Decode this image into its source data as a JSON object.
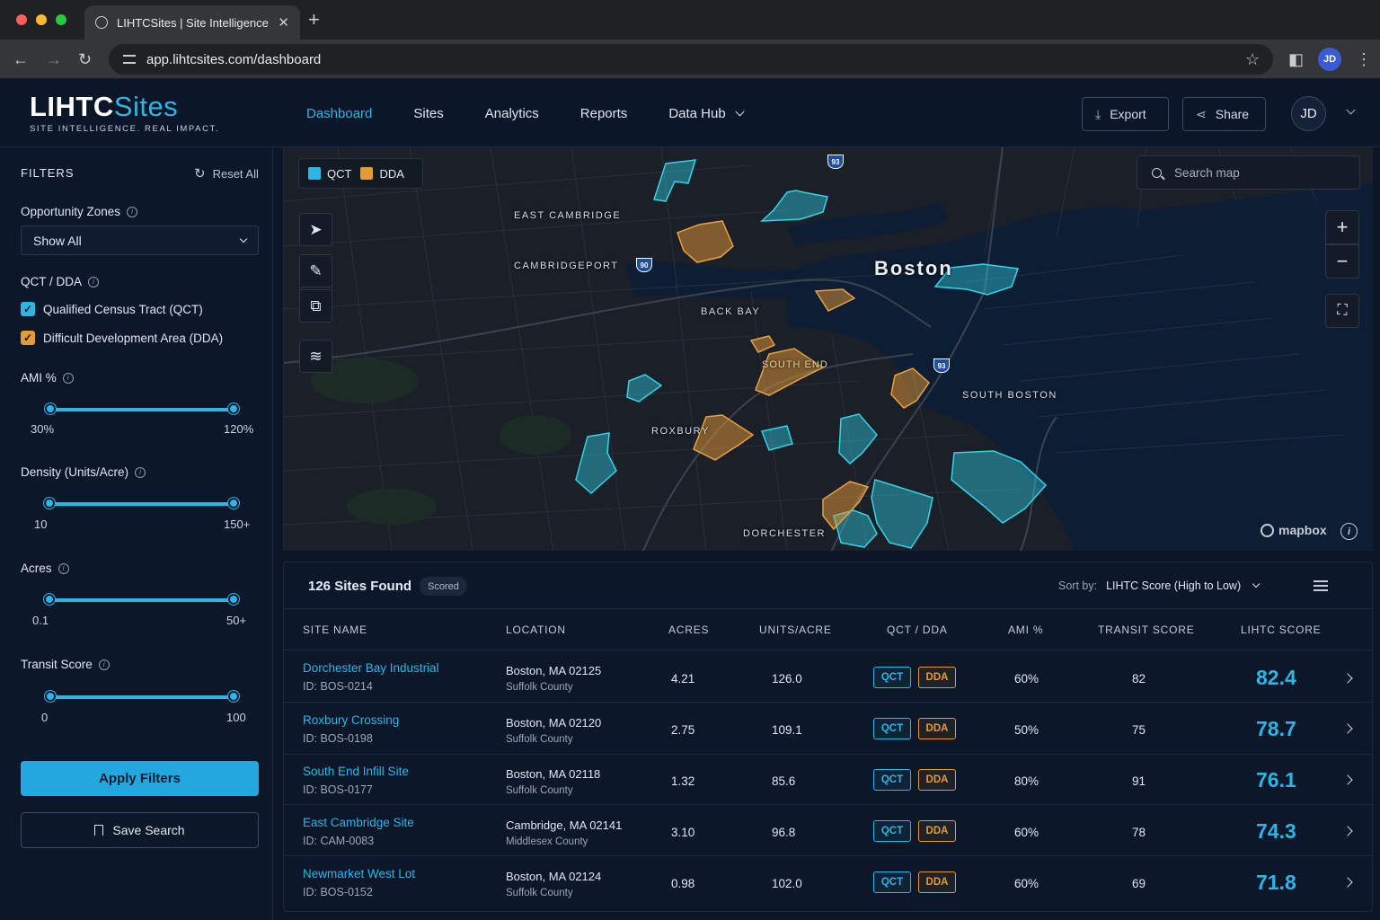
{
  "browser": {
    "tab_title": "LIHTCSites | Site Intelligence",
    "url": "app.lihtcsites.com/dashboard",
    "profile_initials": "JD"
  },
  "app": {
    "logo_bold": "LIHTC",
    "logo_light": "Sites",
    "tagline": "SITE INTELLIGENCE. REAL IMPACT.",
    "nav": [
      "Dashboard",
      "Sites",
      "Analytics",
      "Reports",
      "Data Hub"
    ],
    "active_nav": "Dashboard",
    "export_label": "Export",
    "share_label": "Share",
    "user_initials": "JD",
    "accent": "#2fb4e6",
    "dda_color": "#e59a34"
  },
  "filters": {
    "title": "FILTERS",
    "reset_label": "Reset All",
    "opportunity_zones": {
      "label": "Opportunity Zones",
      "value": "Show All"
    },
    "qct_dda": {
      "label": "QCT / DDA",
      "options": [
        {
          "label": "Qualified Census Tract (QCT)",
          "checked": true,
          "color": "#2fb4e6"
        },
        {
          "label": "Difficult Development Area (DDA)",
          "checked": true,
          "color": "#e59a34"
        }
      ]
    },
    "ami": {
      "label": "AMI %",
      "min": "30%",
      "max": "120%"
    },
    "density": {
      "label": "Density (Units/Acre)",
      "min": "10",
      "max": "150+"
    },
    "acres": {
      "label": "Acres",
      "min": "0.1",
      "max": "50+"
    },
    "transit": {
      "label": "Transit Score",
      "min": "0",
      "max": "100"
    },
    "apply_label": "Apply Filters",
    "save_label": "Save Search"
  },
  "map": {
    "legend": [
      "QCT",
      "DDA"
    ],
    "search_placeholder": "Search map",
    "labels": {
      "east_cambridge": "EAST CAMBRIDGE",
      "cambridgeport": "CAMBRIDGEPORT",
      "boston": "Boston",
      "back_bay": "BACK BAY",
      "south_boston": "SOUTH BOSTON",
      "roxbury": "ROXBURY",
      "dorchester": "DORCHESTER",
      "south_end": "SOUTH END"
    },
    "highways": [
      "93",
      "90",
      "93"
    ],
    "attribution": "mapbox"
  },
  "results": {
    "count_label": "126 Sites Found",
    "badge": "Scored",
    "sort_label": "Sort by:",
    "sort_value": "LIHTC Score (High to Low)",
    "columns": [
      "SITE NAME",
      "LOCATION",
      "ACRES",
      "UNITS/ACRE",
      "QCT / DDA",
      "AMI %",
      "TRANSIT SCORE",
      "LIHTC SCORE"
    ],
    "rows": [
      {
        "name": "Dorchester Bay Industrial",
        "id": "ID: BOS-0214",
        "city": "Boston, MA 02125",
        "county": "Suffolk County",
        "acres": "4.21",
        "units": "126.0",
        "qct": "QCT",
        "dda": "DDA",
        "ami": "60%",
        "transit": "82",
        "score": "82.4"
      },
      {
        "name": "Roxbury Crossing",
        "id": "ID: BOS-0198",
        "city": "Boston, MA 02120",
        "county": "Suffolk County",
        "acres": "2.75",
        "units": "109.1",
        "qct": "QCT",
        "dda": "DDA",
        "ami": "50%",
        "transit": "75",
        "score": "78.7"
      },
      {
        "name": "South End Infill Site",
        "id": "ID: BOS-0177",
        "city": "Boston, MA 02118",
        "county": "Suffolk County",
        "acres": "1.32",
        "units": "85.6",
        "qct": "QCT",
        "dda": "DDA",
        "ami": "80%",
        "transit": "91",
        "score": "76.1"
      },
      {
        "name": "East Cambridge Site",
        "id": "ID: CAM-0083",
        "city": "Cambridge, MA 02141",
        "county": "Middlesex County",
        "acres": "3.10",
        "units": "96.8",
        "qct": "QCT",
        "dda": "DDA",
        "ami": "60%",
        "transit": "78",
        "score": "74.3"
      },
      {
        "name": "Newmarket West Lot",
        "id": "ID: BOS-0152",
        "city": "Boston, MA 02124",
        "county": "Suffolk County",
        "acres": "0.98",
        "units": "102.0",
        "qct": "QCT",
        "dda": "DDA",
        "ami": "60%",
        "transit": "69",
        "score": "71.8"
      }
    ]
  }
}
